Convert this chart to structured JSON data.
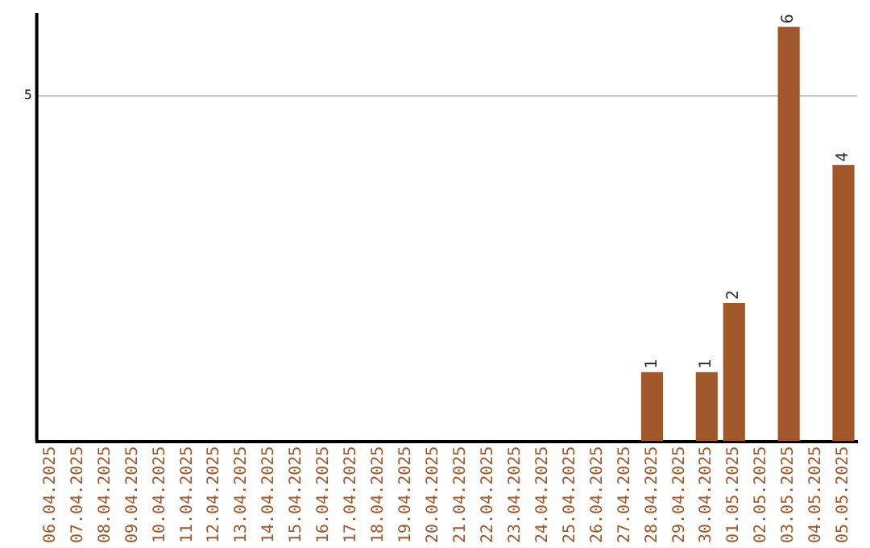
{
  "chart_data": {
    "type": "bar",
    "categories": [
      "06.04.2025",
      "07.04.2025",
      "08.04.2025",
      "09.04.2025",
      "10.04.2025",
      "11.04.2025",
      "12.04.2025",
      "13.04.2025",
      "14.04.2025",
      "15.04.2025",
      "16.04.2025",
      "17.04.2025",
      "18.04.2025",
      "19.04.2025",
      "20.04.2025",
      "21.04.2025",
      "22.04.2025",
      "23.04.2025",
      "24.04.2025",
      "25.04.2025",
      "26.04.2025",
      "27.04.2025",
      "28.04.2025",
      "29.04.2025",
      "30.04.2025",
      "01.05.2025",
      "02.05.2025",
      "03.05.2025",
      "04.05.2025",
      "05.05.2025"
    ],
    "values": [
      null,
      null,
      null,
      null,
      null,
      null,
      null,
      null,
      null,
      null,
      null,
      null,
      null,
      null,
      null,
      null,
      null,
      null,
      null,
      null,
      null,
      null,
      1,
      null,
      1,
      2,
      null,
      6,
      null,
      4
    ],
    "data_labels": true,
    "color": "#a0572a",
    "ylim": [
      0,
      6.2
    ],
    "yticks": [
      5
    ],
    "grid": "y",
    "legend": false
  }
}
